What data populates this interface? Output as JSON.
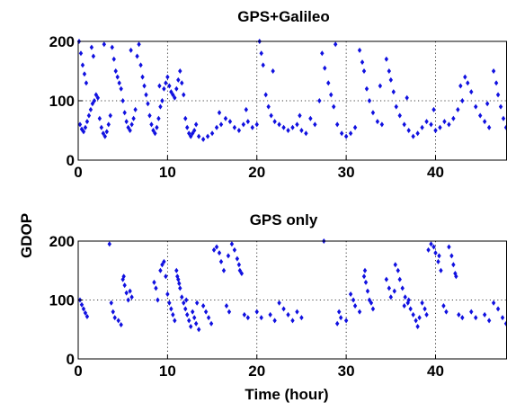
{
  "chart_data": [
    {
      "type": "scatter",
      "title": "GPS+Galileo",
      "xlabel": "",
      "ylabel": "GDOP",
      "xlim": [
        0,
        48
      ],
      "ylim": [
        0,
        200
      ],
      "xticks": [
        0,
        10,
        20,
        30,
        40
      ],
      "yticks": [
        0,
        100,
        200
      ],
      "grid": true,
      "marker_color": "#1010e0",
      "points": [
        [
          0.1,
          200
        ],
        [
          0.3,
          180
        ],
        [
          0.5,
          160
        ],
        [
          0.7,
          145
        ],
        [
          0.9,
          130
        ],
        [
          0.2,
          60
        ],
        [
          0.4,
          52
        ],
        [
          0.6,
          48
        ],
        [
          0.8,
          55
        ],
        [
          1.0,
          65
        ],
        [
          1.2,
          75
        ],
        [
          1.4,
          85
        ],
        [
          1.6,
          95
        ],
        [
          1.8,
          100
        ],
        [
          1.5,
          190
        ],
        [
          1.7,
          175
        ],
        [
          2.0,
          110
        ],
        [
          2.2,
          105
        ],
        [
          2.4,
          70
        ],
        [
          2.6,
          55
        ],
        [
          2.8,
          45
        ],
        [
          3.0,
          40
        ],
        [
          3.2,
          48
        ],
        [
          3.4,
          60
        ],
        [
          3.6,
          75
        ],
        [
          3.8,
          190
        ],
        [
          4.0,
          170
        ],
        [
          4.2,
          150
        ],
        [
          4.4,
          140
        ],
        [
          4.6,
          130
        ],
        [
          4.8,
          120
        ],
        [
          5.0,
          100
        ],
        [
          5.2,
          80
        ],
        [
          5.4,
          65
        ],
        [
          5.6,
          55
        ],
        [
          5.8,
          50
        ],
        [
          6.0,
          60
        ],
        [
          6.2,
          70
        ],
        [
          6.4,
          85
        ],
        [
          6.6,
          175
        ],
        [
          6.8,
          195
        ],
        [
          7.0,
          160
        ],
        [
          7.2,
          140
        ],
        [
          7.4,
          125
        ],
        [
          7.6,
          110
        ],
        [
          7.8,
          95
        ],
        [
          8.0,
          75
        ],
        [
          8.2,
          60
        ],
        [
          8.4,
          50
        ],
        [
          8.6,
          45
        ],
        [
          8.8,
          55
        ],
        [
          9.0,
          70
        ],
        [
          9.2,
          90
        ],
        [
          9.4,
          100
        ],
        [
          9.6,
          120
        ],
        [
          9.8,
          130
        ],
        [
          10.0,
          140
        ],
        [
          10.2,
          125
        ],
        [
          10.4,
          115
        ],
        [
          10.6,
          110
        ],
        [
          10.8,
          105
        ],
        [
          11.0,
          120
        ],
        [
          11.2,
          135
        ],
        [
          11.4,
          150
        ],
        [
          11.6,
          130
        ],
        [
          11.8,
          110
        ],
        [
          12.0,
          70
        ],
        [
          12.2,
          55
        ],
        [
          12.4,
          45
        ],
        [
          12.6,
          40
        ],
        [
          12.8,
          45
        ],
        [
          13.0,
          50
        ],
        [
          13.5,
          40
        ],
        [
          14.0,
          35
        ],
        [
          14.5,
          40
        ],
        [
          15.0,
          45
        ],
        [
          15.5,
          55
        ],
        [
          16.0,
          60
        ],
        [
          16.5,
          70
        ],
        [
          17.0,
          65
        ],
        [
          17.5,
          55
        ],
        [
          18.0,
          50
        ],
        [
          18.5,
          60
        ],
        [
          19.0,
          65
        ],
        [
          19.5,
          55
        ],
        [
          20.0,
          60
        ],
        [
          20.3,
          200
        ],
        [
          20.5,
          180
        ],
        [
          20.7,
          160
        ],
        [
          21.0,
          110
        ],
        [
          21.3,
          90
        ],
        [
          21.6,
          75
        ],
        [
          22.0,
          65
        ],
        [
          22.5,
          60
        ],
        [
          23.0,
          55
        ],
        [
          23.5,
          50
        ],
        [
          24.0,
          55
        ],
        [
          24.5,
          60
        ],
        [
          25.0,
          50
        ],
        [
          25.5,
          45
        ],
        [
          26.0,
          70
        ],
        [
          26.5,
          60
        ],
        [
          27.0,
          100
        ],
        [
          27.3,
          180
        ],
        [
          27.6,
          155
        ],
        [
          28.0,
          130
        ],
        [
          28.3,
          110
        ],
        [
          28.6,
          90
        ],
        [
          29.0,
          60
        ],
        [
          29.5,
          45
        ],
        [
          30.0,
          40
        ],
        [
          30.5,
          45
        ],
        [
          31.0,
          55
        ],
        [
          31.5,
          185
        ],
        [
          31.8,
          165
        ],
        [
          32.0,
          150
        ],
        [
          32.3,
          120
        ],
        [
          32.6,
          100
        ],
        [
          33.0,
          80
        ],
        [
          33.5,
          65
        ],
        [
          34.0,
          60
        ],
        [
          34.5,
          170
        ],
        [
          34.8,
          150
        ],
        [
          35.0,
          135
        ],
        [
          35.3,
          115
        ],
        [
          35.6,
          90
        ],
        [
          36.0,
          75
        ],
        [
          36.5,
          60
        ],
        [
          37.0,
          50
        ],
        [
          37.5,
          40
        ],
        [
          38.0,
          45
        ],
        [
          38.5,
          55
        ],
        [
          39.0,
          65
        ],
        [
          39.5,
          60
        ],
        [
          40.0,
          50
        ],
        [
          40.5,
          55
        ],
        [
          41.0,
          65
        ],
        [
          41.5,
          60
        ],
        [
          42.0,
          70
        ],
        [
          42.5,
          85
        ],
        [
          43.0,
          100
        ],
        [
          43.3,
          140
        ],
        [
          43.6,
          130
        ],
        [
          44.0,
          115
        ],
        [
          44.5,
          90
        ],
        [
          45.0,
          75
        ],
        [
          45.5,
          65
        ],
        [
          46.0,
          55
        ],
        [
          46.5,
          150
        ],
        [
          46.8,
          130
        ],
        [
          47.0,
          110
        ],
        [
          47.3,
          90
        ],
        [
          47.6,
          70
        ],
        [
          47.9,
          55
        ],
        [
          2.9,
          195
        ],
        [
          5.9,
          185
        ],
        [
          9.1,
          125
        ],
        [
          13.2,
          60
        ],
        [
          15.8,
          80
        ],
        [
          18.8,
          85
        ],
        [
          21.8,
          150
        ],
        [
          24.8,
          75
        ],
        [
          28.8,
          195
        ],
        [
          33.8,
          125
        ],
        [
          36.8,
          105
        ],
        [
          39.8,
          85
        ],
        [
          42.8,
          125
        ],
        [
          45.8,
          95
        ]
      ]
    },
    {
      "type": "scatter",
      "title": "GPS only",
      "xlabel": "Time (hour)",
      "ylabel": "",
      "xlim": [
        0,
        48
      ],
      "ylim": [
        0,
        200
      ],
      "xticks": [
        0,
        10,
        20,
        30,
        40
      ],
      "yticks": [
        0,
        100,
        200
      ],
      "grid": true,
      "marker_color": "#1010e0",
      "points": [
        [
          0.2,
          100
        ],
        [
          0.4,
          92
        ],
        [
          0.6,
          85
        ],
        [
          0.8,
          78
        ],
        [
          1.0,
          72
        ],
        [
          3.5,
          195
        ],
        [
          3.7,
          95
        ],
        [
          3.9,
          80
        ],
        [
          4.1,
          70
        ],
        [
          4.5,
          65
        ],
        [
          4.8,
          58
        ],
        [
          5.0,
          135
        ],
        [
          5.2,
          125
        ],
        [
          5.4,
          112
        ],
        [
          5.6,
          100
        ],
        [
          5.8,
          115
        ],
        [
          6.0,
          105
        ],
        [
          8.5,
          130
        ],
        [
          8.7,
          120
        ],
        [
          8.9,
          100
        ],
        [
          9.2,
          150
        ],
        [
          9.4,
          160
        ],
        [
          9.6,
          165
        ],
        [
          9.8,
          140
        ],
        [
          10.0,
          110
        ],
        [
          10.2,
          95
        ],
        [
          10.4,
          85
        ],
        [
          10.6,
          75
        ],
        [
          10.8,
          65
        ],
        [
          11.0,
          150
        ],
        [
          11.2,
          135
        ],
        [
          11.4,
          120
        ],
        [
          11.6,
          105
        ],
        [
          11.8,
          95
        ],
        [
          12.0,
          85
        ],
        [
          12.2,
          75
        ],
        [
          12.4,
          65
        ],
        [
          12.6,
          55
        ],
        [
          12.8,
          80
        ],
        [
          13.0,
          70
        ],
        [
          13.2,
          60
        ],
        [
          13.5,
          50
        ],
        [
          14.0,
          90
        ],
        [
          14.3,
          80
        ],
        [
          14.6,
          70
        ],
        [
          14.9,
          60
        ],
        [
          15.2,
          185
        ],
        [
          15.5,
          190
        ],
        [
          15.8,
          180
        ],
        [
          16.0,
          165
        ],
        [
          16.3,
          150
        ],
        [
          16.6,
          90
        ],
        [
          16.9,
          80
        ],
        [
          17.2,
          195
        ],
        [
          17.5,
          185
        ],
        [
          17.8,
          170
        ],
        [
          18.0,
          160
        ],
        [
          18.3,
          145
        ],
        [
          18.6,
          75
        ],
        [
          19.0,
          70
        ],
        [
          20.0,
          80
        ],
        [
          20.5,
          70
        ],
        [
          21.5,
          75
        ],
        [
          22.0,
          65
        ],
        [
          22.5,
          95
        ],
        [
          23.0,
          85
        ],
        [
          23.5,
          75
        ],
        [
          24.0,
          65
        ],
        [
          24.5,
          80
        ],
        [
          25.0,
          70
        ],
        [
          27.5,
          200
        ],
        [
          29.0,
          60
        ],
        [
          29.2,
          80
        ],
        [
          29.4,
          70
        ],
        [
          30.0,
          65
        ],
        [
          30.5,
          110
        ],
        [
          30.8,
          100
        ],
        [
          31.0,
          90
        ],
        [
          31.5,
          80
        ],
        [
          32.0,
          140
        ],
        [
          32.2,
          130
        ],
        [
          32.4,
          115
        ],
        [
          32.6,
          100
        ],
        [
          32.8,
          95
        ],
        [
          33.0,
          85
        ],
        [
          34.5,
          135
        ],
        [
          34.8,
          120
        ],
        [
          35.0,
          105
        ],
        [
          35.5,
          160
        ],
        [
          35.8,
          150
        ],
        [
          36.0,
          135
        ],
        [
          36.3,
          120
        ],
        [
          36.6,
          105
        ],
        [
          36.9,
          95
        ],
        [
          37.2,
          85
        ],
        [
          37.5,
          75
        ],
        [
          37.8,
          65
        ],
        [
          38.0,
          55
        ],
        [
          38.5,
          95
        ],
        [
          38.8,
          85
        ],
        [
          39.0,
          75
        ],
        [
          39.2,
          185
        ],
        [
          39.5,
          195
        ],
        [
          39.8,
          190
        ],
        [
          40.0,
          180
        ],
        [
          40.3,
          165
        ],
        [
          40.6,
          150
        ],
        [
          40.9,
          90
        ],
        [
          41.2,
          80
        ],
        [
          41.5,
          190
        ],
        [
          41.8,
          175
        ],
        [
          42.0,
          160
        ],
        [
          42.3,
          140
        ],
        [
          42.6,
          75
        ],
        [
          43.0,
          70
        ],
        [
          44.0,
          80
        ],
        [
          44.5,
          70
        ],
        [
          45.5,
          75
        ],
        [
          46.0,
          65
        ],
        [
          46.5,
          95
        ],
        [
          47.0,
          85
        ],
        [
          47.5,
          70
        ],
        [
          47.9,
          60
        ],
        [
          11.1,
          140
        ],
        [
          11.3,
          128
        ],
        [
          12.1,
          100
        ],
        [
          13.3,
          95
        ],
        [
          35.4,
          115
        ],
        [
          36.5,
          90
        ],
        [
          37.0,
          100
        ],
        [
          38.2,
          70
        ],
        [
          16.8,
          175
        ],
        [
          18.1,
          150
        ],
        [
          40.4,
          175
        ],
        [
          42.2,
          145
        ],
        [
          5.1,
          140
        ],
        [
          32.1,
          150
        ]
      ]
    }
  ]
}
